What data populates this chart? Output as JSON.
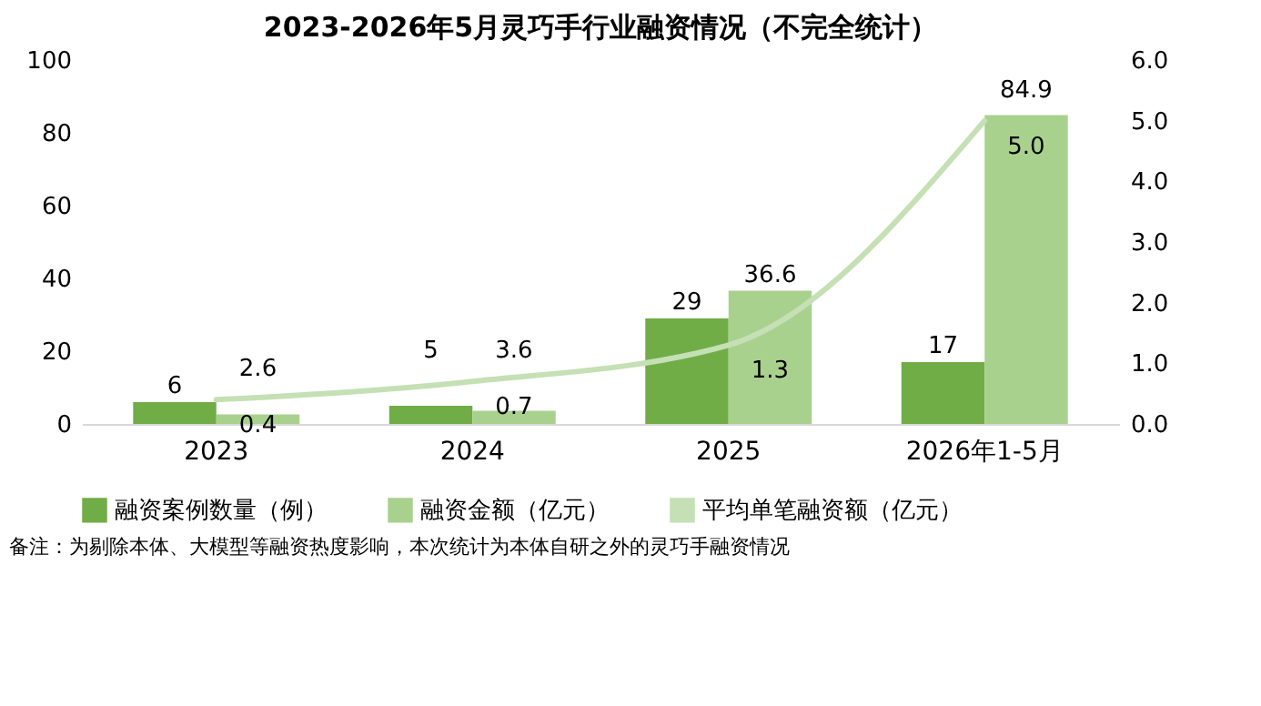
{
  "chart_data": {
    "type": "bar",
    "title": "2023-2026年5月灵巧手行业融资情况（不完全统计）",
    "categories": [
      "2023",
      "2024",
      "2025",
      "2026年1-5月"
    ],
    "series": [
      {
        "name": "融资案例数量（例）",
        "color": "#70ad47",
        "values": [
          6,
          5,
          29,
          17
        ]
      },
      {
        "name": "融资金额（亿元）",
        "color": "#a9d18e",
        "values": [
          2.6,
          3.6,
          36.6,
          84.9
        ]
      },
      {
        "name": "平均单笔融资额（亿元）",
        "color": "#c5e0b4",
        "values": [
          0.4,
          0.7,
          1.3,
          5.0
        ],
        "type": "line",
        "axis": "y2",
        "value_labels": [
          "0.4",
          "0.7",
          "1.3",
          "5.0"
        ]
      }
    ],
    "ylim": [
      0,
      100
    ],
    "yticks": [
      0,
      20,
      40,
      60,
      80,
      100
    ],
    "y2lim": [
      0,
      6
    ],
    "y2ticks": [
      {
        "value": 0,
        "label": "0.0"
      },
      {
        "value": 1,
        "label": "1.0"
      },
      {
        "value": 2,
        "label": "2.0"
      },
      {
        "value": 3,
        "label": "3.0"
      },
      {
        "value": 4,
        "label": "4.0"
      },
      {
        "value": 5,
        "label": "5.0"
      },
      {
        "value": 6,
        "label": "6.0"
      }
    ],
    "data_labels": true,
    "grid": false,
    "legend": "bottom",
    "marker": "none",
    "annotations": [
      "备注：为剔除本体、大模型等融资热度影响，本次统计为本体自研之外的灵巧手融资情况"
    ]
  }
}
